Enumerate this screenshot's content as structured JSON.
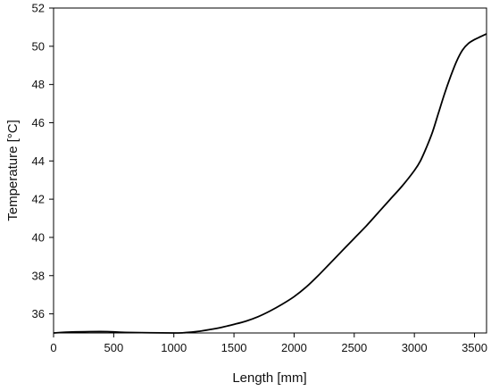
{
  "chart_data": {
    "type": "line",
    "title": "",
    "xlabel": "Length [mm]",
    "ylabel": "Temperature [°C]",
    "xlim": [
      0,
      3600
    ],
    "ylim": [
      35,
      52
    ],
    "xticks": [
      0,
      500,
      1000,
      1500,
      2000,
      2500,
      3000,
      3500
    ],
    "yticks": [
      36,
      38,
      40,
      42,
      44,
      46,
      48,
      50,
      52
    ],
    "grid": false,
    "legend": "none",
    "line_color": "#000000",
    "series": [
      {
        "x": [
          0,
          150,
          300,
          450,
          600,
          1000,
          1100,
          1200,
          1300,
          1400,
          1500,
          1600,
          1700,
          1800,
          1900,
          2000,
          2100,
          2200,
          2300,
          2400,
          2500,
          2600,
          2700,
          2800,
          2900,
          3000,
          3050,
          3100,
          3150,
          3200,
          3250,
          3300,
          3350,
          3400,
          3450,
          3500,
          3550,
          3600
        ],
        "y": [
          35.0,
          35.05,
          35.07,
          35.07,
          35.03,
          35.0,
          35.02,
          35.08,
          35.18,
          35.3,
          35.45,
          35.62,
          35.85,
          36.15,
          36.5,
          36.9,
          37.4,
          38.0,
          38.65,
          39.3,
          39.95,
          40.6,
          41.3,
          42.0,
          42.7,
          43.5,
          44.0,
          44.7,
          45.5,
          46.5,
          47.5,
          48.4,
          49.2,
          49.8,
          50.15,
          50.35,
          50.5,
          50.65
        ]
      }
    ]
  }
}
